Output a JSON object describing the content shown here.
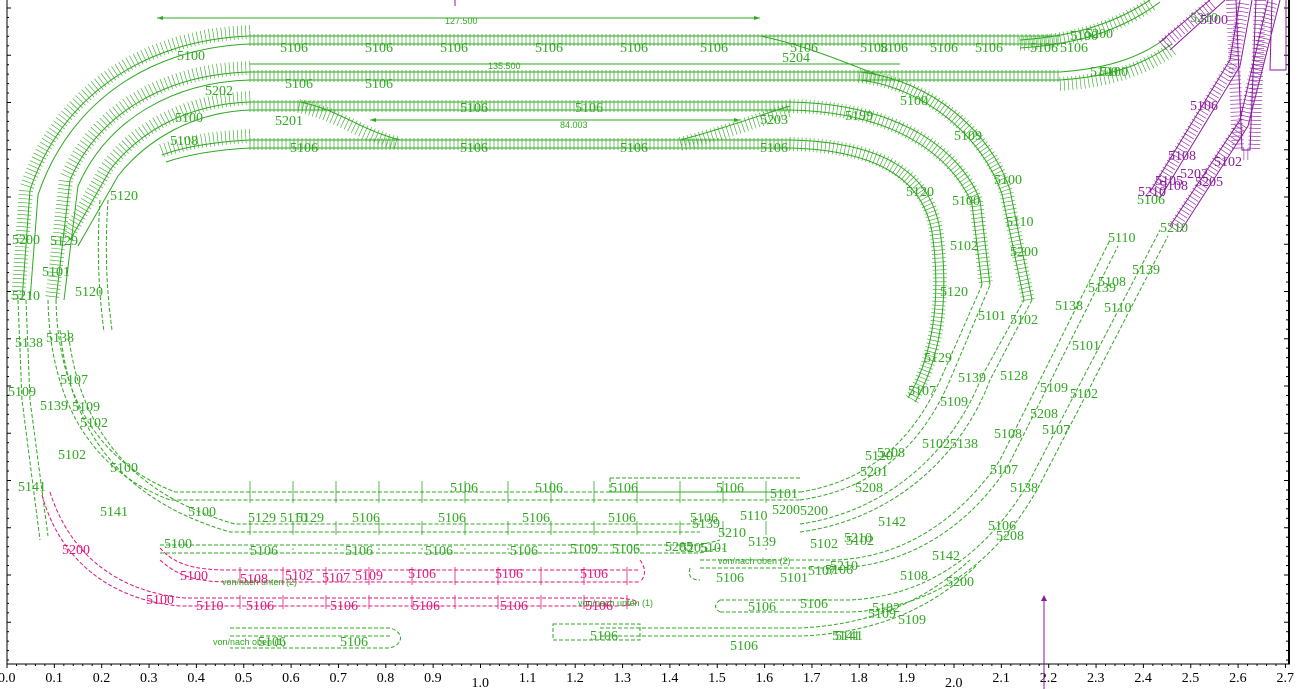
{
  "colors": {
    "track_main": "#2fa820",
    "track_hidden": "#e0157d",
    "track_purple": "#8a1a9e",
    "axis": "#000000"
  },
  "x_axis": {
    "ticks": [
      "0.0",
      "0.1",
      "0.2",
      "0.3",
      "0.4",
      "0.5",
      "0.6",
      "0.7",
      "0.8",
      "0.9",
      "1.0",
      "1.1",
      "1.2",
      "1.3",
      "1.4",
      "1.5",
      "1.6",
      "1.7",
      "1.8",
      "1.9",
      "2.0",
      "2.1",
      "2.2",
      "2.3",
      "2.4",
      "2.5",
      "2.6",
      "2.7"
    ],
    "big": [
      "1.0",
      "2.0"
    ]
  },
  "dimensions": [
    "127.500",
    "135.500",
    "84.003"
  ],
  "connector_labels": [
    {
      "text": "von/nach oben (2)"
    },
    {
      "text": "von/nach unten (2)"
    },
    {
      "text": "von/nach unten (1)"
    },
    {
      "text": "von/nach oben (1)"
    }
  ],
  "part_labels": [
    {
      "text": "5100",
      "c": "g"
    },
    {
      "text": "5106",
      "c": "g"
    },
    {
      "text": "5106",
      "c": "g"
    },
    {
      "text": "5106",
      "c": "g"
    },
    {
      "text": "5106",
      "c": "g"
    },
    {
      "text": "5106",
      "c": "g"
    },
    {
      "text": "5106",
      "c": "g"
    },
    {
      "text": "5106",
      "c": "g"
    },
    {
      "text": "5200",
      "c": "g"
    },
    {
      "text": "5100",
      "c": "g"
    },
    {
      "text": "5108",
      "c": "g"
    },
    {
      "text": "5106",
      "c": "g"
    },
    {
      "text": "5106",
      "c": "g"
    },
    {
      "text": "5106",
      "c": "g"
    },
    {
      "text": "5106",
      "c": "g"
    },
    {
      "text": "5106",
      "c": "g"
    },
    {
      "text": "5204",
      "c": "g"
    },
    {
      "text": "5106",
      "c": "g"
    },
    {
      "text": "5106",
      "c": "g"
    },
    {
      "text": "5100",
      "c": "g"
    },
    {
      "text": "5202",
      "c": "g"
    },
    {
      "text": "5100",
      "c": "g"
    },
    {
      "text": "5201",
      "c": "g"
    },
    {
      "text": "5106",
      "c": "g"
    },
    {
      "text": "5106",
      "c": "g"
    },
    {
      "text": "5203",
      "c": "g"
    },
    {
      "text": "5199",
      "c": "g"
    },
    {
      "text": "5108",
      "c": "g"
    },
    {
      "text": "5106",
      "c": "g"
    },
    {
      "text": "5106",
      "c": "g"
    },
    {
      "text": "5106",
      "c": "g"
    },
    {
      "text": "5106",
      "c": "g"
    },
    {
      "text": "5100",
      "c": "g"
    },
    {
      "text": "5129",
      "c": "g"
    },
    {
      "text": "5120",
      "c": "g"
    },
    {
      "text": "5120",
      "c": "g"
    },
    {
      "text": "5120",
      "c": "g"
    },
    {
      "text": "5200",
      "c": "g"
    },
    {
      "text": "5101",
      "c": "g"
    },
    {
      "text": "5210",
      "c": "g"
    },
    {
      "text": "5138",
      "c": "g"
    },
    {
      "text": "5138",
      "c": "g"
    },
    {
      "text": "5107",
      "c": "g"
    },
    {
      "text": "5109",
      "c": "g"
    },
    {
      "text": "5139",
      "c": "g"
    },
    {
      "text": "5109",
      "c": "g"
    },
    {
      "text": "5102",
      "c": "g"
    },
    {
      "text": "5102",
      "c": "g"
    },
    {
      "text": "5100",
      "c": "g"
    },
    {
      "text": "5141",
      "c": "g"
    },
    {
      "text": "5141",
      "c": "g"
    },
    {
      "text": "5100",
      "c": "g"
    },
    {
      "text": "5129",
      "c": "g"
    },
    {
      "text": "5110",
      "c": "g"
    },
    {
      "text": "5129",
      "c": "g"
    },
    {
      "text": "5106",
      "c": "g"
    },
    {
      "text": "5106",
      "c": "g"
    },
    {
      "text": "5106",
      "c": "g"
    },
    {
      "text": "5106",
      "c": "g"
    },
    {
      "text": "5106",
      "c": "g"
    },
    {
      "text": "5106",
      "c": "g"
    },
    {
      "text": "5106",
      "c": "g"
    },
    {
      "text": "5106",
      "c": "g"
    },
    {
      "text": "5205",
      "c": "g"
    },
    {
      "text": "5101",
      "c": "g"
    },
    {
      "text": "5200",
      "c": "g"
    },
    {
      "text": "5139",
      "c": "g"
    },
    {
      "text": "5210",
      "c": "g"
    },
    {
      "text": "5110",
      "c": "g"
    },
    {
      "text": "5139",
      "c": "g"
    },
    {
      "text": "5100",
      "c": "g"
    },
    {
      "text": "5106",
      "c": "g"
    },
    {
      "text": "5106",
      "c": "g"
    },
    {
      "text": "5106",
      "c": "g"
    },
    {
      "text": "5106",
      "c": "g"
    },
    {
      "text": "5109",
      "c": "g"
    },
    {
      "text": "5106",
      "c": "g"
    },
    {
      "text": "5205",
      "c": "g"
    },
    {
      "text": "5106",
      "c": "g"
    },
    {
      "text": "5101",
      "c": "g"
    },
    {
      "text": "5102",
      "c": "g"
    },
    {
      "text": "5210",
      "c": "g"
    },
    {
      "text": "5106",
      "c": "g"
    },
    {
      "text": "5101",
      "c": "g"
    },
    {
      "text": "5106",
      "c": "g"
    },
    {
      "text": "5200",
      "c": "g"
    },
    {
      "text": "5107",
      "c": "g"
    },
    {
      "text": "5109",
      "c": "g"
    },
    {
      "text": "5106",
      "c": "g"
    },
    {
      "text": "5106",
      "c": "g"
    },
    {
      "text": "5106",
      "c": "g"
    },
    {
      "text": "5106",
      "c": "g"
    },
    {
      "text": "5141",
      "c": "g"
    },
    {
      "text": "5106",
      "c": "g"
    },
    {
      "text": "5106",
      "c": "g"
    },
    {
      "text": "5200",
      "c": "p"
    },
    {
      "text": "5100",
      "c": "p"
    },
    {
      "text": "5108",
      "c": "p"
    },
    {
      "text": "5102",
      "c": "p"
    },
    {
      "text": "5107",
      "c": "p"
    },
    {
      "text": "5109",
      "c": "p"
    },
    {
      "text": "5106",
      "c": "p"
    },
    {
      "text": "5106",
      "c": "p"
    },
    {
      "text": "5106",
      "c": "p"
    },
    {
      "text": "5100",
      "c": "p"
    },
    {
      "text": "5110",
      "c": "p"
    },
    {
      "text": "5106",
      "c": "p"
    },
    {
      "text": "5106",
      "c": "p"
    },
    {
      "text": "5106",
      "c": "p"
    },
    {
      "text": "5106",
      "c": "p"
    },
    {
      "text": "5106",
      "c": "p"
    },
    {
      "text": "5120",
      "c": "g"
    },
    {
      "text": "5129",
      "c": "g"
    },
    {
      "text": "5107",
      "c": "g"
    },
    {
      "text": "5102",
      "c": "g"
    },
    {
      "text": "5120",
      "c": "g"
    },
    {
      "text": "5208",
      "c": "g"
    },
    {
      "text": "5201",
      "c": "g"
    },
    {
      "text": "5208",
      "c": "g"
    },
    {
      "text": "5142",
      "c": "g"
    },
    {
      "text": "5102",
      "c": "g"
    },
    {
      "text": "5210",
      "c": "g"
    },
    {
      "text": "5142",
      "c": "g"
    },
    {
      "text": "5108",
      "c": "g"
    },
    {
      "text": "5200",
      "c": "g"
    },
    {
      "text": "5102",
      "c": "g"
    },
    {
      "text": "5109",
      "c": "g"
    },
    {
      "text": "5141",
      "c": "g"
    },
    {
      "text": "5101",
      "c": "g"
    },
    {
      "text": "5102",
      "c": "g"
    },
    {
      "text": "5139",
      "c": "g"
    },
    {
      "text": "5128",
      "c": "g"
    },
    {
      "text": "5109",
      "c": "g"
    },
    {
      "text": "5138",
      "c": "g"
    },
    {
      "text": "5108",
      "c": "g"
    },
    {
      "text": "5208",
      "c": "g"
    },
    {
      "text": "5107",
      "c": "g"
    },
    {
      "text": "5107",
      "c": "g"
    },
    {
      "text": "5138",
      "c": "g"
    },
    {
      "text": "5106",
      "c": "g"
    },
    {
      "text": "5208",
      "c": "g"
    },
    {
      "text": "5109",
      "c": "g"
    },
    {
      "text": "5102",
      "c": "g"
    },
    {
      "text": "5101",
      "c": "g"
    },
    {
      "text": "5138",
      "c": "g"
    },
    {
      "text": "5139",
      "c": "g"
    },
    {
      "text": "5108",
      "c": "g"
    },
    {
      "text": "5110",
      "c": "g"
    },
    {
      "text": "5139",
      "c": "g"
    },
    {
      "text": "5110",
      "c": "g"
    },
    {
      "text": "5106",
      "c": "g"
    },
    {
      "text": "5210",
      "c": "g"
    },
    {
      "text": "5210",
      "c": "g"
    },
    {
      "text": "5100",
      "c": "g"
    },
    {
      "text": "5100",
      "c": "g"
    },
    {
      "text": "5109",
      "c": "g"
    },
    {
      "text": "5110",
      "c": "g"
    },
    {
      "text": "5100",
      "c": "g"
    },
    {
      "text": "5102",
      "c": "g"
    },
    {
      "text": "5200",
      "c": "g"
    },
    {
      "text": "5100",
      "c": "v"
    },
    {
      "text": "5106",
      "c": "v"
    },
    {
      "text": "5108",
      "c": "v"
    },
    {
      "text": "5202",
      "c": "v"
    },
    {
      "text": "5102",
      "c": "v"
    },
    {
      "text": "5205",
      "c": "v"
    },
    {
      "text": "5210",
      "c": "v"
    },
    {
      "text": "5108",
      "c": "v"
    },
    {
      "text": "5105",
      "c": "v"
    }
  ]
}
